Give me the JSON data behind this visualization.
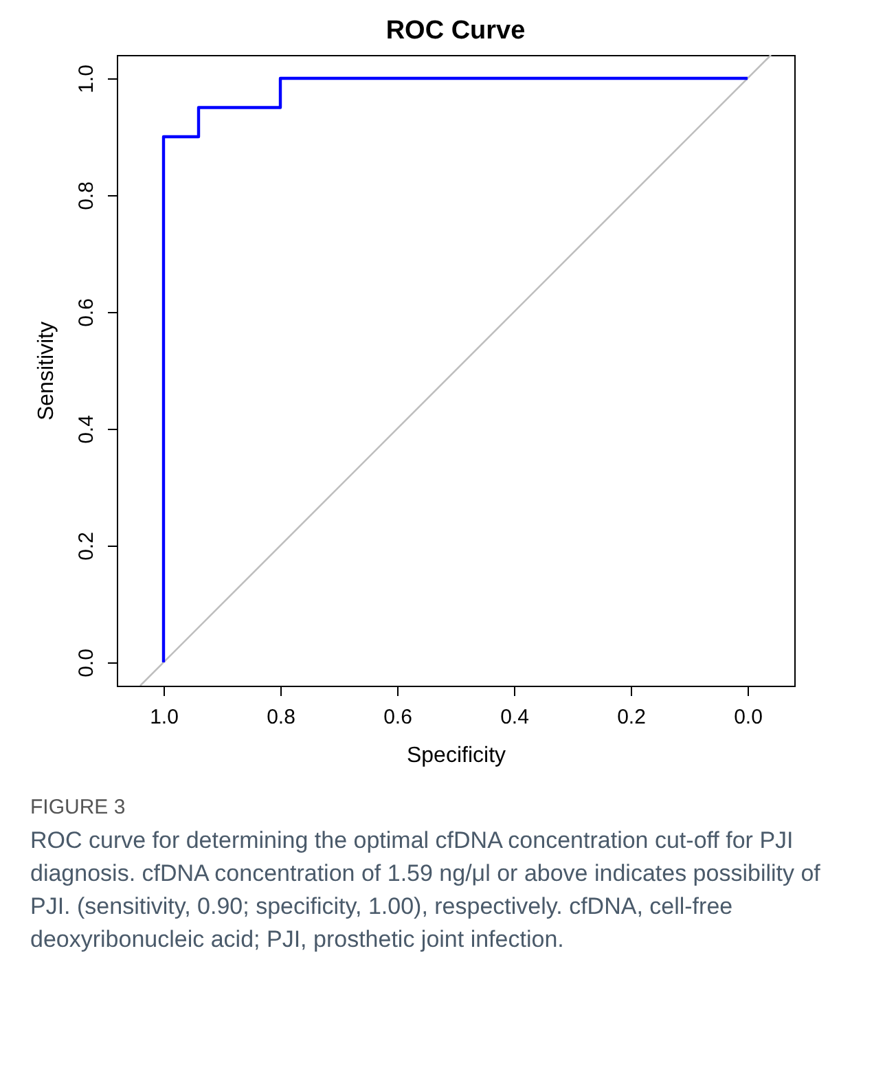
{
  "chart_data": {
    "type": "line",
    "title": "ROC Curve",
    "xlabel": "Specificity",
    "ylabel": "Sensitivity",
    "xlim": [
      1.08,
      -0.08
    ],
    "ylim": [
      -0.04,
      1.04
    ],
    "xticks": [
      {
        "value": 1,
        "label": "1.0"
      },
      {
        "value": 0.8,
        "label": "0.8"
      },
      {
        "value": 0.6,
        "label": "0.6"
      },
      {
        "value": 0.4,
        "label": "0.4"
      },
      {
        "value": 0.2,
        "label": "0.2"
      },
      {
        "value": 0,
        "label": "0.0"
      }
    ],
    "yticks": [
      {
        "value": 0,
        "label": "0.0"
      },
      {
        "value": 0.2,
        "label": "0.2"
      },
      {
        "value": 0.4,
        "label": "0.4"
      },
      {
        "value": 0.6,
        "label": "0.6"
      },
      {
        "value": 0.8,
        "label": "0.8"
      },
      {
        "value": 1,
        "label": "1.0"
      }
    ],
    "grid": false,
    "marker": "none",
    "line_style": "solid",
    "series": [
      {
        "color": "#bebebe",
        "x": [
          1.04,
          -0.04
        ],
        "values": [
          -0.04,
          1.04
        ]
      },
      {
        "color": "#0000ff",
        "x": [
          1.0,
          1.0,
          0.94,
          0.94,
          0.8,
          0.8,
          0.0
        ],
        "values": [
          0,
          0.9,
          0.9,
          0.95,
          0.95,
          1.0,
          1.0
        ]
      }
    ],
    "annotations": [
      "FIGURE 3",
      "ROC curve for determining the optimal cfDNA concentration cut-off for PJI diagnosis. cfDNA concentration of 1.59 ng/μl or above indicates possibility of PJI. (sensitivity, 0.90; specificity, 1.00), respectively. cfDNA, cell-free deoxyribonucleic acid; PJI, prosthetic joint infection."
    ]
  }
}
